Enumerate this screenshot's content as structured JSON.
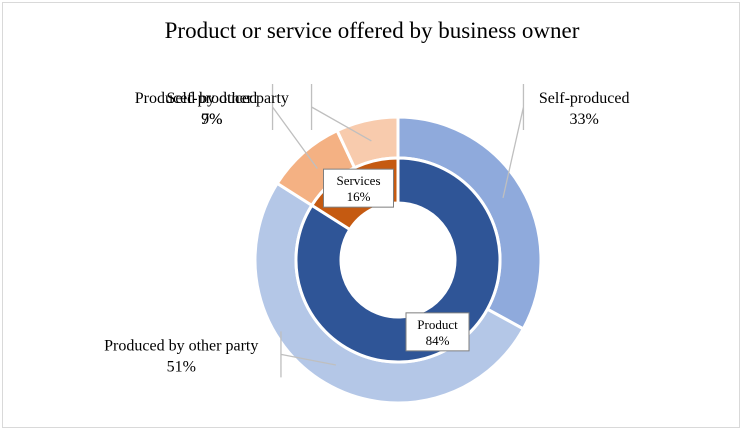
{
  "chart_data": {
    "type": "pie",
    "subtype": "nested-donut",
    "title": "Product or service offered by business owner",
    "inner_ring": {
      "slices": [
        {
          "name": "Product",
          "value": 84,
          "label": "84%",
          "color": "#2f5597"
        },
        {
          "name": "Services",
          "value": 16,
          "label": "16%",
          "color": "#c55a11"
        }
      ]
    },
    "outer_ring": {
      "slices": [
        {
          "name": "Self-produced",
          "group": "Product",
          "value": 33,
          "label": "33%",
          "color": "#8faadc"
        },
        {
          "name": "Produced by other party",
          "group": "Product",
          "value": 51,
          "label": "51%",
          "color": "#b4c7e7"
        },
        {
          "name": "Self-produced",
          "group": "Services",
          "value": 9,
          "label": "9%",
          "color": "#f4b183"
        },
        {
          "name": "Produced by other party",
          "group": "Services",
          "value": 7,
          "label": "7%",
          "color": "#f8cbad"
        }
      ]
    }
  }
}
